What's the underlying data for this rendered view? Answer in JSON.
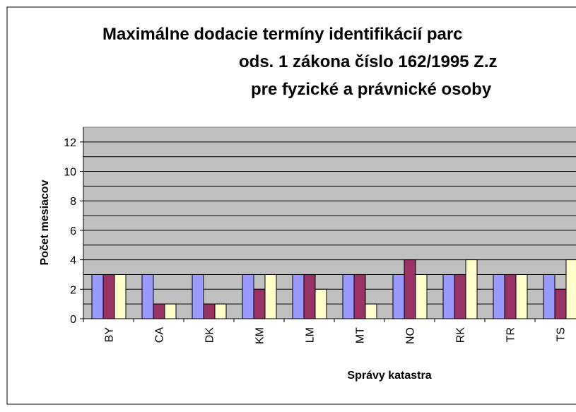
{
  "chart_data": {
    "type": "bar",
    "title": [
      "Maximálne dodacie termíny identifikácií parc",
      "ods. 1 zákona číslo 162/1995 Z.z",
      "pre fyzické a právnické osoby"
    ],
    "x_label": "Správy katastra",
    "y_label": "Počet mesiacov",
    "categories": [
      "BY",
      "CA",
      "DK",
      "KM",
      "LM",
      "MT",
      "NO",
      "RK",
      "TR",
      "TS"
    ],
    "series": [
      {
        "color": "#9999ff",
        "values": [
          3,
          3,
          3,
          3,
          3,
          3,
          3,
          3,
          3,
          3
        ]
      },
      {
        "color": "#993366",
        "values": [
          3,
          1,
          1,
          2,
          3,
          3,
          4,
          3,
          3,
          2
        ]
      },
      {
        "color": "#ffffcc",
        "values": [
          3,
          1,
          1,
          3,
          2,
          1,
          3,
          4,
          3,
          4
        ]
      }
    ],
    "ylim": [
      0,
      13
    ],
    "yticks": [
      0,
      2,
      4,
      6,
      8,
      10,
      12
    ],
    "grid": true,
    "plot_background": "#c0c0c0"
  }
}
